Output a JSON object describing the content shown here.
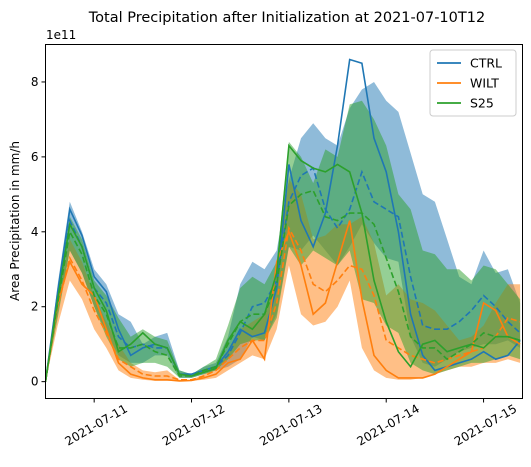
{
  "chart_data": {
    "type": "line",
    "title": "Total Precipitation after Initialization at 2021-07-10T12",
    "ylabel": "Area Precipitation in mm/h",
    "xlabel": "",
    "y_scale_label": "1e11",
    "xlim": [
      0.0,
      4.9
    ],
    "ylim": [
      -0.45,
      9.0
    ],
    "x_ticks": [
      {
        "x": 0.5,
        "label": "2021-07-11"
      },
      {
        "x": 1.5,
        "label": "2021-07-12"
      },
      {
        "x": 2.5,
        "label": "2021-07-13"
      },
      {
        "x": 3.5,
        "label": "2021-07-14"
      },
      {
        "x": 4.5,
        "label": "2021-07-15"
      }
    ],
    "y_ticks": [
      0,
      2,
      4,
      6,
      8
    ],
    "legend_position": "top-right",
    "grid": false,
    "series": [
      {
        "name": "CTRL",
        "color": "#1f77b4",
        "x": [
          0.0,
          0.125,
          0.25,
          0.375,
          0.5,
          0.625,
          0.75,
          0.875,
          1.0,
          1.125,
          1.25,
          1.375,
          1.5,
          1.625,
          1.75,
          1.875,
          2.0,
          2.125,
          2.25,
          2.375,
          2.5,
          2.625,
          2.75,
          2.875,
          3.0,
          3.125,
          3.25,
          3.375,
          3.5,
          3.625,
          3.75,
          3.875,
          4.0,
          4.125,
          4.25,
          4.375,
          4.5,
          4.625,
          4.75,
          4.875
        ],
        "upper": [
          0.0,
          2.6,
          4.8,
          4.0,
          3.0,
          2.6,
          1.8,
          1.6,
          1.0,
          1.2,
          1.3,
          0.3,
          0.2,
          0.4,
          0.5,
          1.2,
          2.6,
          3.2,
          3.0,
          3.5,
          5.4,
          6.5,
          6.9,
          6.5,
          6.3,
          7.3,
          7.8,
          8.0,
          7.5,
          7.2,
          6.1,
          5.0,
          4.8,
          3.8,
          2.8,
          2.6,
          3.5,
          2.9,
          3.0,
          2.1
        ],
        "mean": [
          0.0,
          2.2,
          4.3,
          3.6,
          2.5,
          2.1,
          1.2,
          0.9,
          1.0,
          0.9,
          0.9,
          0.2,
          0.2,
          0.3,
          0.4,
          0.7,
          1.3,
          2.0,
          2.1,
          2.7,
          4.8,
          5.5,
          5.7,
          4.6,
          4.1,
          4.6,
          5.6,
          4.8,
          4.6,
          4.4,
          2.8,
          1.5,
          1.4,
          1.4,
          1.6,
          1.9,
          2.3,
          2.0,
          1.6,
          1.3
        ],
        "lower": [
          0.0,
          1.8,
          3.5,
          2.9,
          2.0,
          1.3,
          0.7,
          0.5,
          0.5,
          0.7,
          0.7,
          0.1,
          0.1,
          0.2,
          0.3,
          0.4,
          0.6,
          1.2,
          1.1,
          1.8,
          3.6,
          3.5,
          3.9,
          3.5,
          3.1,
          3.6,
          4.2,
          3.7,
          3.3,
          3.2,
          1.2,
          0.5,
          0.4,
          0.6,
          0.8,
          0.9,
          1.0,
          1.0,
          1.1,
          0.9
        ],
        "line": [
          0.0,
          2.4,
          4.6,
          3.9,
          2.8,
          2.4,
          1.4,
          0.7,
          0.9,
          1.0,
          0.9,
          0.2,
          0.2,
          0.3,
          0.4,
          0.8,
          1.4,
          1.2,
          1.3,
          2.5,
          5.8,
          4.3,
          3.6,
          4.5,
          6.3,
          8.6,
          8.5,
          6.5,
          5.6,
          4.0,
          1.8,
          0.7,
          0.3,
          0.4,
          0.5,
          0.6,
          0.8,
          0.6,
          0.7,
          1.1
        ]
      },
      {
        "name": "WILT",
        "color": "#ff7f0e",
        "x": [
          0.0,
          0.125,
          0.25,
          0.375,
          0.5,
          0.625,
          0.75,
          0.875,
          1.0,
          1.125,
          1.25,
          1.375,
          1.5,
          1.625,
          1.75,
          1.875,
          2.0,
          2.125,
          2.25,
          2.375,
          2.5,
          2.625,
          2.75,
          2.875,
          3.0,
          3.125,
          3.25,
          3.375,
          3.5,
          3.625,
          3.75,
          3.875,
          4.0,
          4.125,
          4.25,
          4.375,
          4.5,
          4.625,
          4.75,
          4.875
        ],
        "upper": [
          0.0,
          2.2,
          3.8,
          3.2,
          2.3,
          1.6,
          1.0,
          0.5,
          0.3,
          0.25,
          0.3,
          0.05,
          0.05,
          0.2,
          0.4,
          0.8,
          1.4,
          1.6,
          1.8,
          3.0,
          5.4,
          5.0,
          3.8,
          3.9,
          4.2,
          4.2,
          4.4,
          3.7,
          2.3,
          2.6,
          2.2,
          2.1,
          1.9,
          1.5,
          1.1,
          1.2,
          1.5,
          2.1,
          2.6,
          2.6
        ],
        "mean": [
          0.0,
          2.0,
          3.3,
          2.7,
          1.9,
          1.3,
          0.6,
          0.4,
          0.2,
          0.15,
          0.15,
          0.05,
          0.05,
          0.15,
          0.3,
          0.6,
          0.9,
          1.1,
          1.1,
          2.1,
          4.1,
          3.5,
          2.6,
          2.4,
          2.7,
          3.1,
          3.0,
          2.3,
          1.1,
          0.9,
          0.7,
          0.6,
          0.5,
          0.6,
          0.7,
          0.8,
          0.9,
          1.2,
          1.7,
          1.6
        ],
        "lower": [
          0.0,
          1.5,
          2.7,
          2.2,
          1.4,
          0.9,
          0.3,
          0.1,
          0.05,
          0.02,
          0.02,
          0.02,
          0.02,
          0.05,
          0.1,
          0.3,
          0.5,
          0.7,
          0.6,
          1.4,
          3.1,
          1.8,
          1.5,
          1.6,
          2.0,
          2.7,
          0.9,
          0.3,
          0.1,
          0.05,
          0.05,
          0.1,
          0.2,
          0.3,
          0.4,
          0.4,
          0.5,
          0.5,
          0.6,
          0.5
        ],
        "line": [
          0.0,
          2.1,
          3.2,
          2.6,
          2.3,
          1.4,
          0.5,
          0.2,
          0.1,
          0.05,
          0.05,
          0.02,
          0.03,
          0.1,
          0.2,
          0.5,
          0.6,
          1.1,
          0.6,
          3.2,
          4.0,
          3.1,
          1.8,
          2.1,
          3.2,
          4.3,
          2.2,
          0.7,
          0.3,
          0.1,
          0.1,
          0.1,
          0.2,
          0.4,
          0.6,
          0.8,
          2.1,
          1.9,
          1.2,
          1.0
        ]
      },
      {
        "name": "S25",
        "color": "#2ca02c",
        "x": [
          0.0,
          0.125,
          0.25,
          0.375,
          0.5,
          0.625,
          0.75,
          0.875,
          1.0,
          1.125,
          1.25,
          1.375,
          1.5,
          1.625,
          1.75,
          1.875,
          2.0,
          2.125,
          2.25,
          2.375,
          2.5,
          2.625,
          2.75,
          2.875,
          3.0,
          3.125,
          3.25,
          3.375,
          3.5,
          3.625,
          3.75,
          3.875,
          4.0,
          4.125,
          4.25,
          4.375,
          4.5,
          4.625,
          4.75,
          4.875
        ],
        "upper": [
          0.0,
          2.4,
          4.4,
          3.8,
          2.7,
          2.3,
          1.7,
          1.2,
          1.4,
          1.2,
          1.1,
          0.3,
          0.2,
          0.4,
          0.6,
          1.5,
          2.5,
          2.8,
          2.6,
          3.2,
          6.4,
          6.0,
          5.3,
          6.2,
          6.0,
          7.4,
          7.5,
          7.0,
          6.3,
          5.0,
          4.6,
          3.5,
          3.4,
          3.0,
          3.0,
          2.7,
          3.1,
          3.0,
          2.6,
          2.2
        ],
        "mean": [
          0.0,
          2.1,
          4.0,
          3.4,
          2.3,
          1.8,
          0.9,
          0.9,
          1.0,
          0.8,
          0.7,
          0.15,
          0.15,
          0.3,
          0.4,
          1.0,
          1.6,
          1.8,
          1.8,
          2.6,
          4.7,
          5.0,
          5.1,
          4.4,
          4.3,
          4.5,
          4.5,
          4.2,
          3.3,
          2.4,
          1.2,
          0.9,
          0.9,
          0.6,
          0.8,
          1.0,
          1.3,
          1.2,
          1.2,
          1.1
        ],
        "lower": [
          0.0,
          1.7,
          3.5,
          2.9,
          2.0,
          1.2,
          0.6,
          0.4,
          0.5,
          0.5,
          0.4,
          0.1,
          0.1,
          0.2,
          0.3,
          0.6,
          1.0,
          1.1,
          1.1,
          1.7,
          3.6,
          3.1,
          3.5,
          3.3,
          3.1,
          3.5,
          2.2,
          2.1,
          1.5,
          1.3,
          0.5,
          0.3,
          0.2,
          0.3,
          0.4,
          0.5,
          0.5,
          0.6,
          0.7,
          0.6
        ],
        "line": [
          0.0,
          2.2,
          4.2,
          3.6,
          2.5,
          1.9,
          0.8,
          1.0,
          1.3,
          1.0,
          0.9,
          0.2,
          0.15,
          0.25,
          0.35,
          1.1,
          1.6,
          1.4,
          1.8,
          2.9,
          6.3,
          5.9,
          5.7,
          5.6,
          5.8,
          5.6,
          4.5,
          2.7,
          1.6,
          0.8,
          0.4,
          1.0,
          1.1,
          0.8,
          0.9,
          1.0,
          0.9,
          1.2,
          1.2,
          1.1
        ]
      }
    ]
  }
}
